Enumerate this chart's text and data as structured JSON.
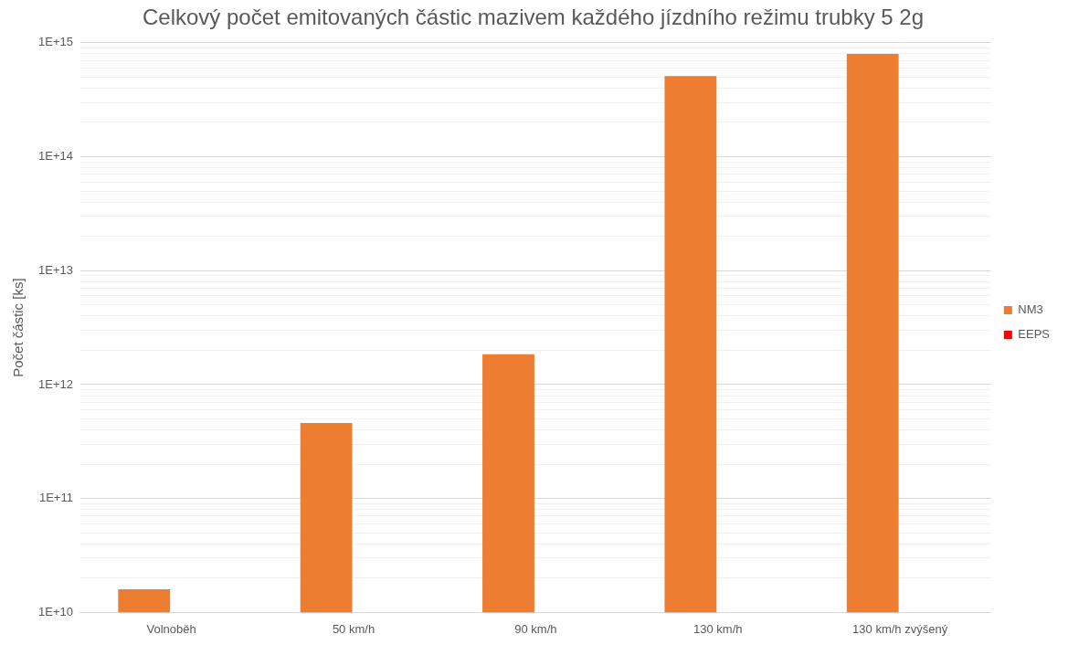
{
  "chart_data": {
    "type": "bar",
    "title": "Celkový počet emitovaných částic mazivem každého jízdního režimu trubky 5 2g",
    "ylabel": "Počet částic [ks]",
    "categories": [
      "Volnoběh",
      "50 km/h",
      "90 km/h",
      "130 km/h",
      "130 km/h zvýšený"
    ],
    "series": [
      {
        "name": "NM3",
        "color": "#ed7d31",
        "values": [
          16000000000.0,
          460000000000.0,
          1850000000000.0,
          510000000000000.0,
          800000000000000.0
        ]
      },
      {
        "name": "EEPS",
        "color": "#ff0000",
        "values": [
          null,
          null,
          null,
          null,
          null
        ]
      }
    ],
    "log": "y",
    "ylim": [
      10000000000.0,
      1000000000000000.0
    ],
    "yticks": [
      {
        "value": 10000000000.0,
        "label": "1E+10"
      },
      {
        "value": 100000000000.0,
        "label": "1E+11"
      },
      {
        "value": 1000000000000.0,
        "label": "1E+12"
      },
      {
        "value": 10000000000000.0,
        "label": "1E+13"
      },
      {
        "value": 100000000000000.0,
        "label": "1E+14"
      },
      {
        "value": 1000000000000000.0,
        "label": "1E+15"
      }
    ],
    "grid": "y",
    "legend": "right"
  }
}
